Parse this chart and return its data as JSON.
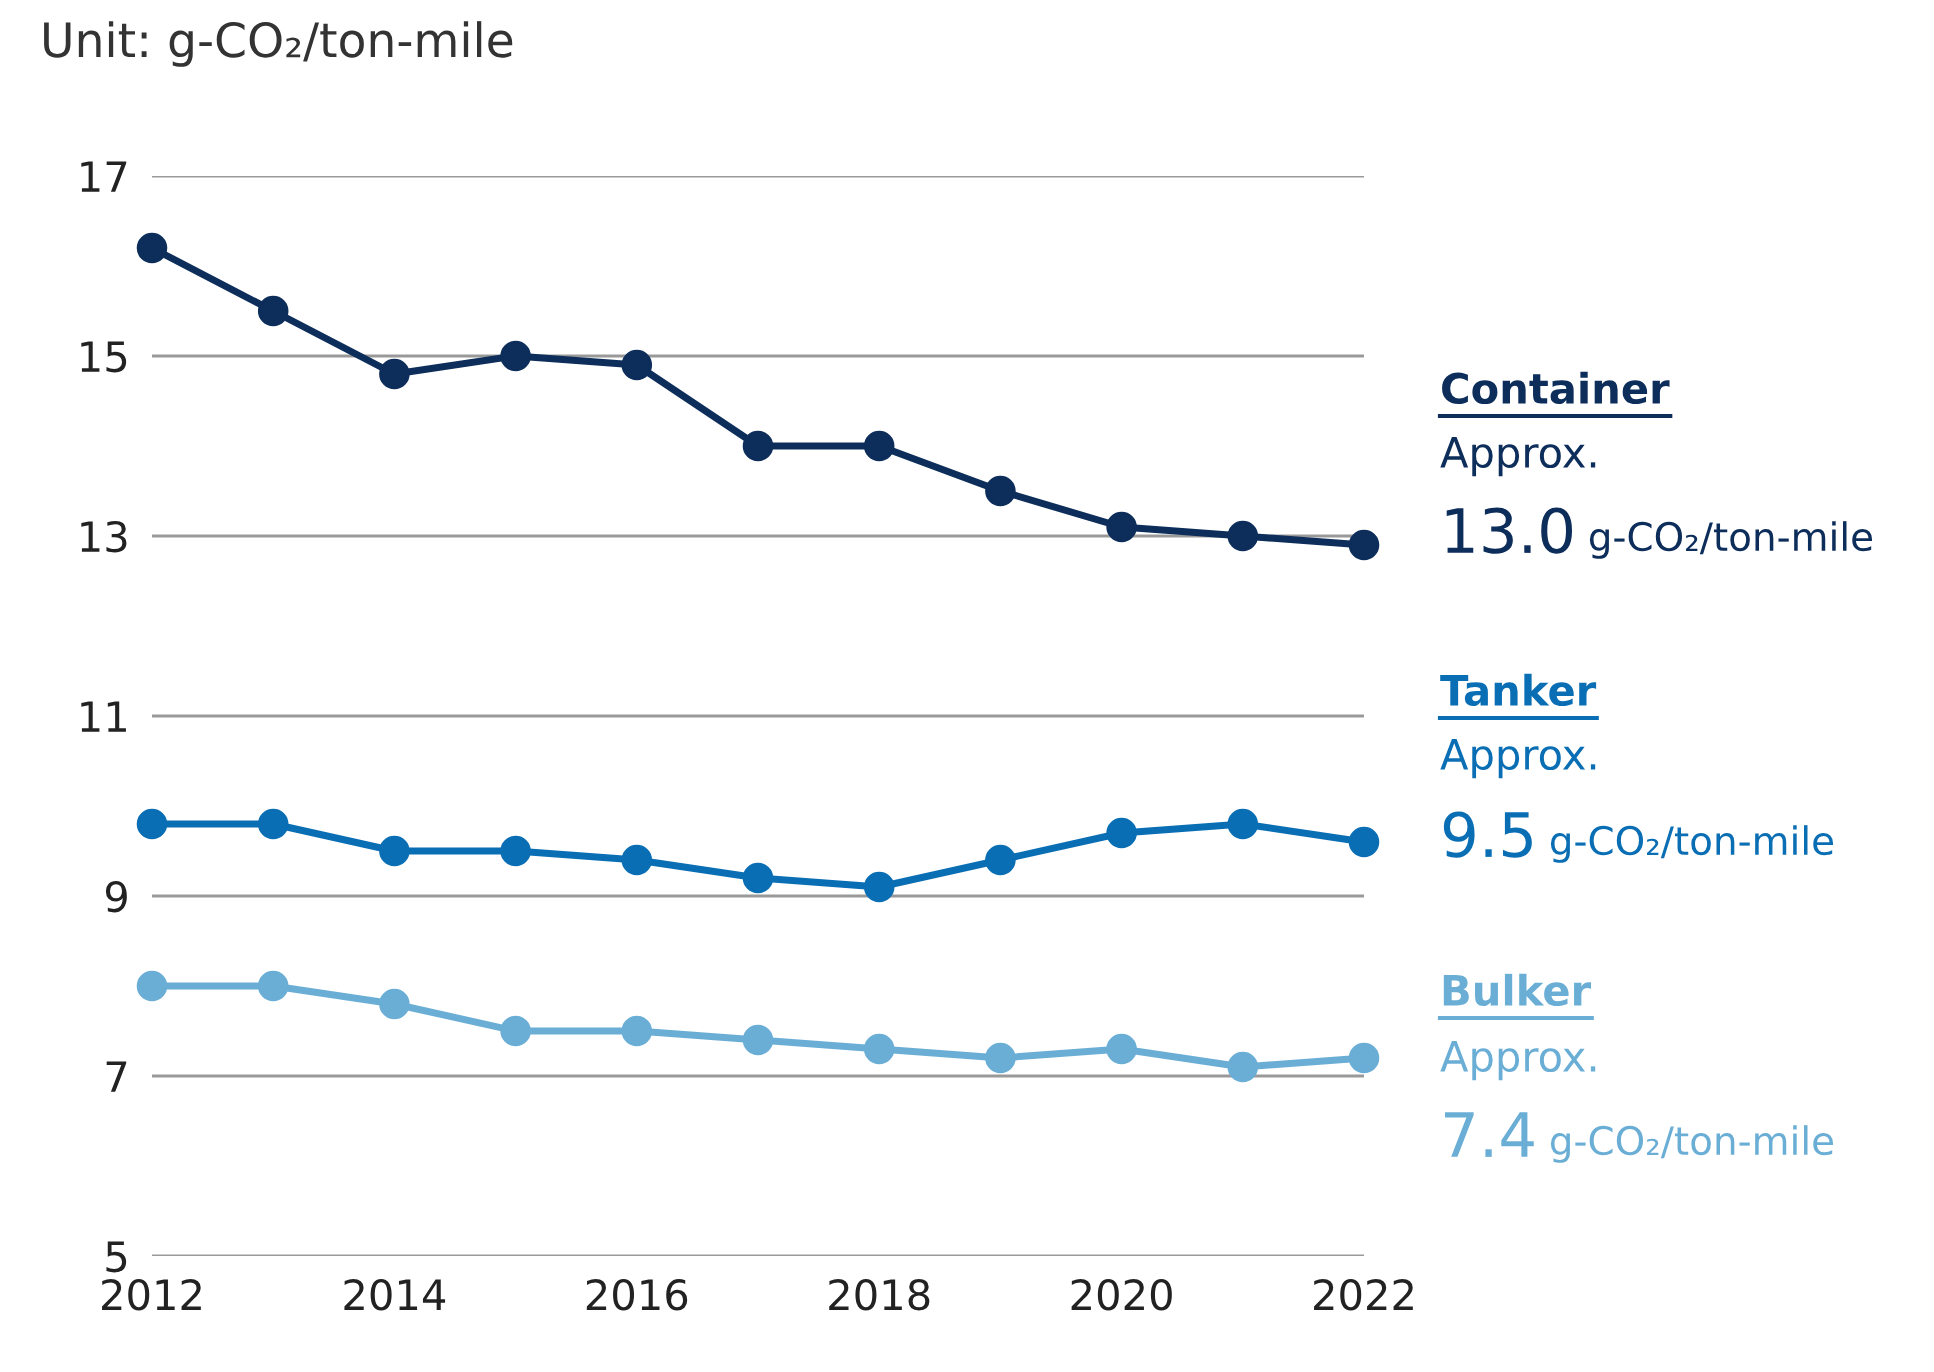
{
  "chart_data": {
    "type": "line",
    "title": "Unit: g-CO₂/ton-mile",
    "x": [
      2012,
      2013,
      2014,
      2015,
      2016,
      2017,
      2018,
      2019,
      2020,
      2021,
      2022
    ],
    "series": [
      {
        "name": "Container",
        "color": "#0d2d5a",
        "values": [
          16.2,
          15.5,
          14.8,
          15.0,
          14.9,
          14.0,
          14.0,
          13.5,
          13.1,
          13.0,
          12.9
        ]
      },
      {
        "name": "Tanker",
        "color": "#0a6eb4",
        "values": [
          9.8,
          9.8,
          9.5,
          9.5,
          9.4,
          9.2,
          9.1,
          9.4,
          9.7,
          9.8,
          9.6
        ]
      },
      {
        "name": "Bulker",
        "color": "#6aaed6",
        "values": [
          8.0,
          8.0,
          7.8,
          7.5,
          7.5,
          7.4,
          7.3,
          7.2,
          7.3,
          7.1,
          7.2
        ]
      }
    ],
    "annotations": [
      "Approx. 13.0 g-CO₂/ton-mile",
      "Approx. 9.5 g-CO₂/ton-mile",
      "Approx. 7.4 g-CO₂/ton-mile"
    ],
    "xlim": [
      2012,
      2022
    ],
    "xticks": [
      2012,
      2014,
      2016,
      2018,
      2020,
      2022
    ],
    "ylim": [
      5,
      17
    ],
    "yticks": [
      5,
      7,
      9,
      11,
      13,
      15,
      17
    ],
    "grid": "y",
    "marker": "circle",
    "line_style": "solid",
    "legend": false
  }
}
